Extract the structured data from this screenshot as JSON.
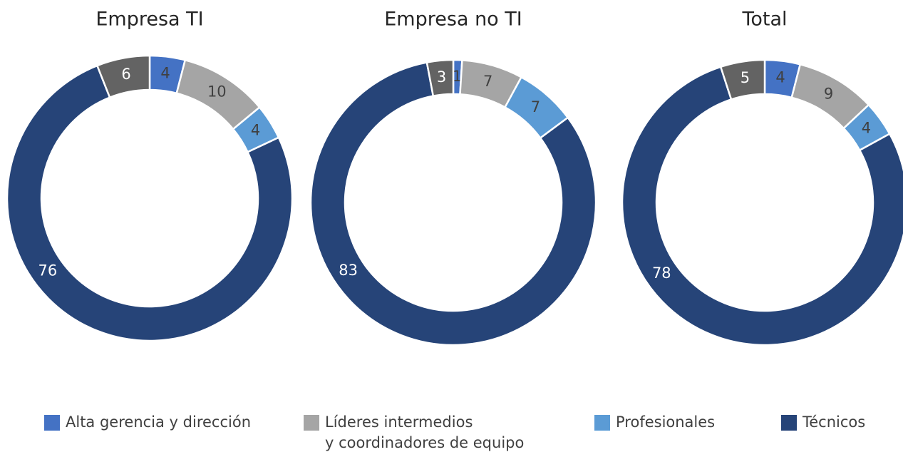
{
  "chart_data": [
    {
      "type": "donut",
      "title": "Empresa TI",
      "categories": [
        "Alta gerencia y dirección",
        "Líderes intermedios\ny coordinadores de equipo",
        "Profesionales",
        "Técnicos",
        null
      ],
      "values": [
        4,
        10,
        4,
        76,
        6
      ],
      "colors": [
        "#4472c4",
        "#a5a5a5",
        "#5b9bd5",
        "#264478",
        "#636363"
      ]
    },
    {
      "type": "donut",
      "title": "Empresa no TI",
      "categories": [
        "Alta gerencia y dirección",
        "Líderes intermedios\ny coordinadores de equipo",
        "Profesionales",
        "Técnicos",
        null
      ],
      "values": [
        1,
        7,
        7,
        83,
        3
      ],
      "colors": [
        "#4472c4",
        "#a5a5a5",
        "#5b9bd5",
        "#264478",
        "#636363"
      ]
    },
    {
      "type": "donut",
      "title": "Total",
      "categories": [
        "Alta gerencia y dirección",
        "Líderes intermedios\ny coordinadores de equipo",
        "Profesionales",
        "Técnicos",
        null
      ],
      "values": [
        4,
        9,
        4,
        78,
        5
      ],
      "colors": [
        "#4472c4",
        "#a5a5a5",
        "#5b9bd5",
        "#264478",
        "#636363"
      ]
    }
  ]
}
